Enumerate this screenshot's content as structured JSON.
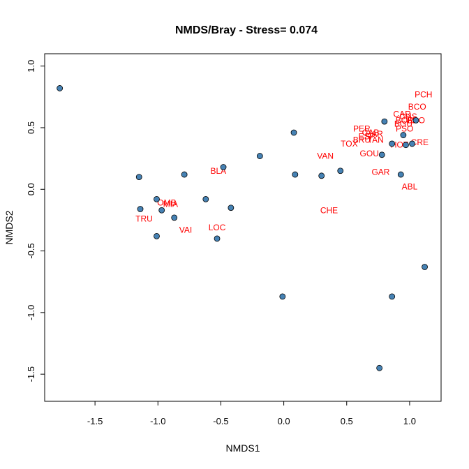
{
  "chart_data": {
    "type": "scatter",
    "title": "NMDS/Bray - Stress= 0.074",
    "xlabel": "NMDS1",
    "ylabel": "NMDS2",
    "xlim": [
      -1.9,
      1.25
    ],
    "ylim": [
      -1.72,
      1.1
    ],
    "xticks": [
      "-1.5",
      "-1.0",
      "-0.5",
      "0.0",
      "0.5",
      "1.0"
    ],
    "yticks": [
      "-1.5",
      "-1.0",
      "-0.5",
      "0.0",
      "0.5",
      "1.0"
    ],
    "grid": false,
    "point_color": "#4682b4",
    "label_color": "#ff0000",
    "points": [
      {
        "x": -1.78,
        "y": 0.82
      },
      {
        "x": -1.15,
        "y": 0.1
      },
      {
        "x": -1.14,
        "y": -0.16
      },
      {
        "x": -1.01,
        "y": -0.38
      },
      {
        "x": -1.01,
        "y": -0.08
      },
      {
        "x": -0.97,
        "y": -0.17
      },
      {
        "x": -0.87,
        "y": -0.23
      },
      {
        "x": -0.79,
        "y": 0.12
      },
      {
        "x": -0.62,
        "y": -0.08
      },
      {
        "x": -0.53,
        "y": -0.4
      },
      {
        "x": -0.48,
        "y": 0.18
      },
      {
        "x": -0.42,
        "y": -0.15
      },
      {
        "x": -0.19,
        "y": 0.27
      },
      {
        "x": -0.01,
        "y": -0.87
      },
      {
        "x": 0.08,
        "y": 0.46
      },
      {
        "x": 0.09,
        "y": 0.12
      },
      {
        "x": 0.3,
        "y": 0.11
      },
      {
        "x": 0.45,
        "y": 0.15
      },
      {
        "x": 0.76,
        "y": -1.45
      },
      {
        "x": 0.78,
        "y": 0.28
      },
      {
        "x": 0.8,
        "y": 0.55
      },
      {
        "x": 0.86,
        "y": 0.37
      },
      {
        "x": 0.86,
        "y": -0.87
      },
      {
        "x": 0.93,
        "y": 0.12
      },
      {
        "x": 0.95,
        "y": 0.44
      },
      {
        "x": 0.97,
        "y": 0.36
      },
      {
        "x": 1.02,
        "y": 0.37
      },
      {
        "x": 1.05,
        "y": 0.56
      },
      {
        "x": 1.12,
        "y": -0.63
      }
    ],
    "labels": [
      {
        "text": "PCH",
        "x": 1.11,
        "y": 0.77
      },
      {
        "text": "BCO",
        "x": 1.06,
        "y": 0.67
      },
      {
        "text": "CAR",
        "x": 0.94,
        "y": 0.61
      },
      {
        "text": "CHS",
        "x": 0.99,
        "y": 0.59
      },
      {
        "text": "BOR",
        "x": 0.96,
        "y": 0.56
      },
      {
        "text": "BDO",
        "x": 1.05,
        "y": 0.56
      },
      {
        "text": "BGU",
        "x": 0.95,
        "y": 0.53
      },
      {
        "text": "PSO",
        "x": 0.96,
        "y": 0.49
      },
      {
        "text": "PER",
        "x": 0.62,
        "y": 0.49
      },
      {
        "text": "CAB",
        "x": 0.69,
        "y": 0.46
      },
      {
        "text": "BAR",
        "x": 0.72,
        "y": 0.45
      },
      {
        "text": "ESP",
        "x": 0.66,
        "y": 0.43
      },
      {
        "text": "BRU",
        "x": 0.62,
        "y": 0.4
      },
      {
        "text": "TAN",
        "x": 0.73,
        "y": 0.4
      },
      {
        "text": "TOX",
        "x": 0.52,
        "y": 0.37
      },
      {
        "text": "HOT",
        "x": 0.92,
        "y": 0.36
      },
      {
        "text": "CRE",
        "x": 1.08,
        "y": 0.38
      },
      {
        "text": "VAN",
        "x": 0.33,
        "y": 0.27
      },
      {
        "text": "GOU",
        "x": 0.68,
        "y": 0.29
      },
      {
        "text": "GAR",
        "x": 0.77,
        "y": 0.14
      },
      {
        "text": "ABL",
        "x": 1.0,
        "y": 0.02
      },
      {
        "text": "BLA",
        "x": -0.52,
        "y": 0.15
      },
      {
        "text": "OMB",
        "x": -0.93,
        "y": -0.11
      },
      {
        "text": "MIA",
        "x": -0.9,
        "y": -0.12
      },
      {
        "text": "TRU",
        "x": -1.11,
        "y": -0.24
      },
      {
        "text": "VAI",
        "x": -0.78,
        "y": -0.33
      },
      {
        "text": "LOC",
        "x": -0.53,
        "y": -0.31
      },
      {
        "text": "CHE",
        "x": 0.36,
        "y": -0.17
      }
    ]
  }
}
